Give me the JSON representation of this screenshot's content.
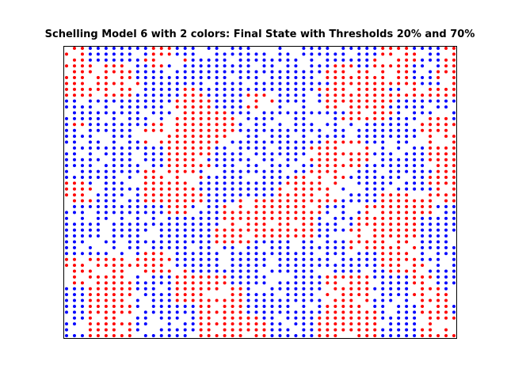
{
  "chart_data": {
    "type": "scatter",
    "title": "Schelling Model 6 with 2 colors: Final State with Thresholds 20% and 70%",
    "xlabel": "",
    "ylabel": "",
    "grid": false,
    "legend": "none",
    "axis_ticks": "hidden",
    "grid_size": {
      "cols": 50,
      "rows": 50
    },
    "series": [
      {
        "color": "#ff0000"
      },
      {
        "color": "#0000ff"
      }
    ],
    "rows": [
      "RRRBBBBBBBBRRRBBBBBBBBBBBBBBBBBBBBBBBBBBRRRRBBBBRR",
      "RRRBBBBBBBBRRRBBBBBBBBBBBBBBBBBBBBBBBBBBRRRRRBBBRR",
      "RRRBBBBBBBRRRRRRBBBBBBBBBBBBBBBBBBBBBBBRRRRRRBBBRR",
      "RRRRRRRRRBBRRBBBBBBBBBBBBBBBBBBBBBRRRBBRRRRRBBBBRR",
      "RRRRRRRRRBBBBBBBBBBBBBBBBBBBBBBBBRRRRRRRRRRRBBBRRR",
      "RRRRRRRRRBBBBBBBBBBBBBBBBBBBBBBBBRRRRRRRRRRRBBBRRR",
      "RRRRRRRRRRBBBBBBBBBBBBBBBBBBBBBBBBRRRRRRRRRRRBBBRR",
      "RRRRRRRRRBBBBBBRRBBBBBBBBBBBBBBBRRRRRRRRRBBBRRRRRR",
      "RRRRRRRRRBBBBBBRRRBBBBBRRRRBBBBBBRRRRRRRRRRRRRRRRR",
      "BBBBBBBBBBBBBBRRRRRBBBBRRRRBBBBBBRRRRRRRRRBBBBBBBB",
      "BBBBBBBBBBBBBBRRRRRBBBBRRRRBBBBBBRRRRRRRRBBBBBBBBB",
      "BBBBBBBBBBBBBBRRRRRRRBBBBBBBBBBBBBBBRRRRRRBBBBBBBB",
      "BBBBBBBBBBBBBRRRRRRRRRBBBBBBBBBBBBBRRRRRRBBBBRRRRB",
      "BRRBBBBBBBBRRRRRRRRRRRBBBBBBBBBBBBBBBBBBBBBBBRRRRR",
      "BBBBBBBBBBRRRRRRRRRRRRBBBBBBBBBBBBBBBBBBBBBBBRRRRR",
      "BBBBBBBBBBRRRRRRRRRRRRBBBBBBBBBBBBBBBBBBBBBBBRRRRR",
      "BBBBBBBBBBRRRRRRRRRRBBBBBBBBBBBBBRRRRRBBBBBBBRRRRR",
      "BBBBBBBBBBBBBRRRRRRBBBBBBBBBBBBRRRRRRRRBBBBBBBRRRR",
      "BBBBBBBBBBBBBRRRRRRBBBBBBBBBBBBRRRRRRRRBBBBBBBRRRR",
      "BBBBBBBBBBBBBRRRRRBBBBBBBBBBBBRRRRRRRRRBBBBBBBRRRR",
      "BBBBBBBBBBBBBRRRRRRBBBBBBBBBBBBBRRRRRRBBBBBBBBRRRR",
      "BBBBBBBBBBRRRRRRRBBBBBBBBBBBBBBRRRRRRBBBBBBBBBBRRR",
      "BBBBBBBBBBRRRRRRRRBBBBBBBBBBBRRRRRRRBBBBBBBBBBRRRR",
      "RRRBBBBBBBRRRRRRRBBBBBBBBBBBRRRRRRRBBBBBBBBBBBRRRR",
      "RRRRBBBBBBRRRRRRRBBBBBBBBBBRRRRRRRRBBBBBBBBBBBBRRR",
      "RRRRBBBBBBRRRRRRRRBBBBBBBBBRRRRRRRRBBBBBRRRRRRRRRR",
      "RRRRBBBBBBRRRRRRRRBBBBRRRRRRRRRRRRRBBBBBRRRRRRRRRR",
      "BBBBBBBBBBBBBRRRBBBBRRRRRRRRRRRRRBBBBBRRRRRRRRRBBB",
      "BBBBBBBBBBBBBRRRBBBBRRRRRRRRRRRRRBBBBBRRRRRRRRRBBB",
      "BBBBBBBBBBBBBBBBBBBBRRRRRRRRRRRRBBBBBRRRRRRRRBBBBB",
      "BBBBBBBBBBBBBBBBBBBBRRRRRRRRRRRRBBBBBRRRRRRRRBBBBB",
      "BBBBBBBBBBBBBBBBBBBRRRRRRRRRRRRRBBBBRRRRRRRRRBBBBB",
      "BBBBBBBBBBBBBBBBBBBRRRRRRRRRRRRRBBBBRRRRRRRRRBBBBB",
      "BBBBBBBBBBBBBBBBBBBRRRRRBBBBBBBBBBBBRRRRRRRRRBBBBB",
      "BBBBBBBBBBBBBBBBBBBBBBBBBBBBBBBBBBBBRRRRRRRRRBBBBB",
      "BBBBBBBBBBRRRRBBBBBBBBBBBBBBBBBBBBBBBBBBRRRRRBBBBB",
      "RRRRRRRRRRRRRRBBBBBBBBBBBBBBBBBBBBBBBBBBRRRRRBBBBB",
      "RRRRRRRRRRRRRRBBBBBBBBBBBBBBBBBBBBBBBBBBRRRRRRBBBB",
      "RRRRRRRRRRRRRRRRBBBBBBBBBBBBBBBBBBBBBBBBBRRRRRBBBB",
      "RRRRRRRRRBBBBBRRRRRRRBBBBBBBBBBBBRRRRRRBBBBBRRRBBB",
      "RRRRRRRRRBBBBBRRRRRRRBBBBBBBBBBBBRRRRRRBBBBBRRRBBB",
      "BBBRRRRRRBBBBBRRRRRRRRRBBBBBBBBBBRRRRRRBBBBBRRRRBB",
      "BBBRRRRRRBBBBBRRRRRRRRRBBBBBBBBBBRRRRRRBBBBBRRRRRB",
      "BBBRRRRRRBBBBBRRRRRRRRRBBBBBBBBBBRRRRRRBBBBBRRRRRB",
      "BBBRRRRRRBBBBBBBBRRRRRRBBBBBBBBBBRRRRRRBBBBBBRRRRB",
      "BBBRRRRRRBBBBBBBBRRRRRRBBBBBBBBBBRRRRRRRBBBBBRRRRB",
      "BBBRRRRRRBBBBBBBBRRRRRRRRBBBBBBBRRRRRRRRBBBBBRRRRR",
      "BBBRRRRRRBBBBBBBBRRRRRRRRRBBBBBBRRRRRRRRBBBBBRRRRR",
      "BBBRRRRRRBBBBBBBBRRRRRRRRRBBBBBBRRRRRRRRBBBBBRRRRR",
      "BBBRRRRRRBBBBBBBBRRRRRRRRRBBBBBBRRRRRRRRBBBBBRRRRR"
    ],
    "empty_rate": 0.14,
    "empty_seed": 6
  }
}
